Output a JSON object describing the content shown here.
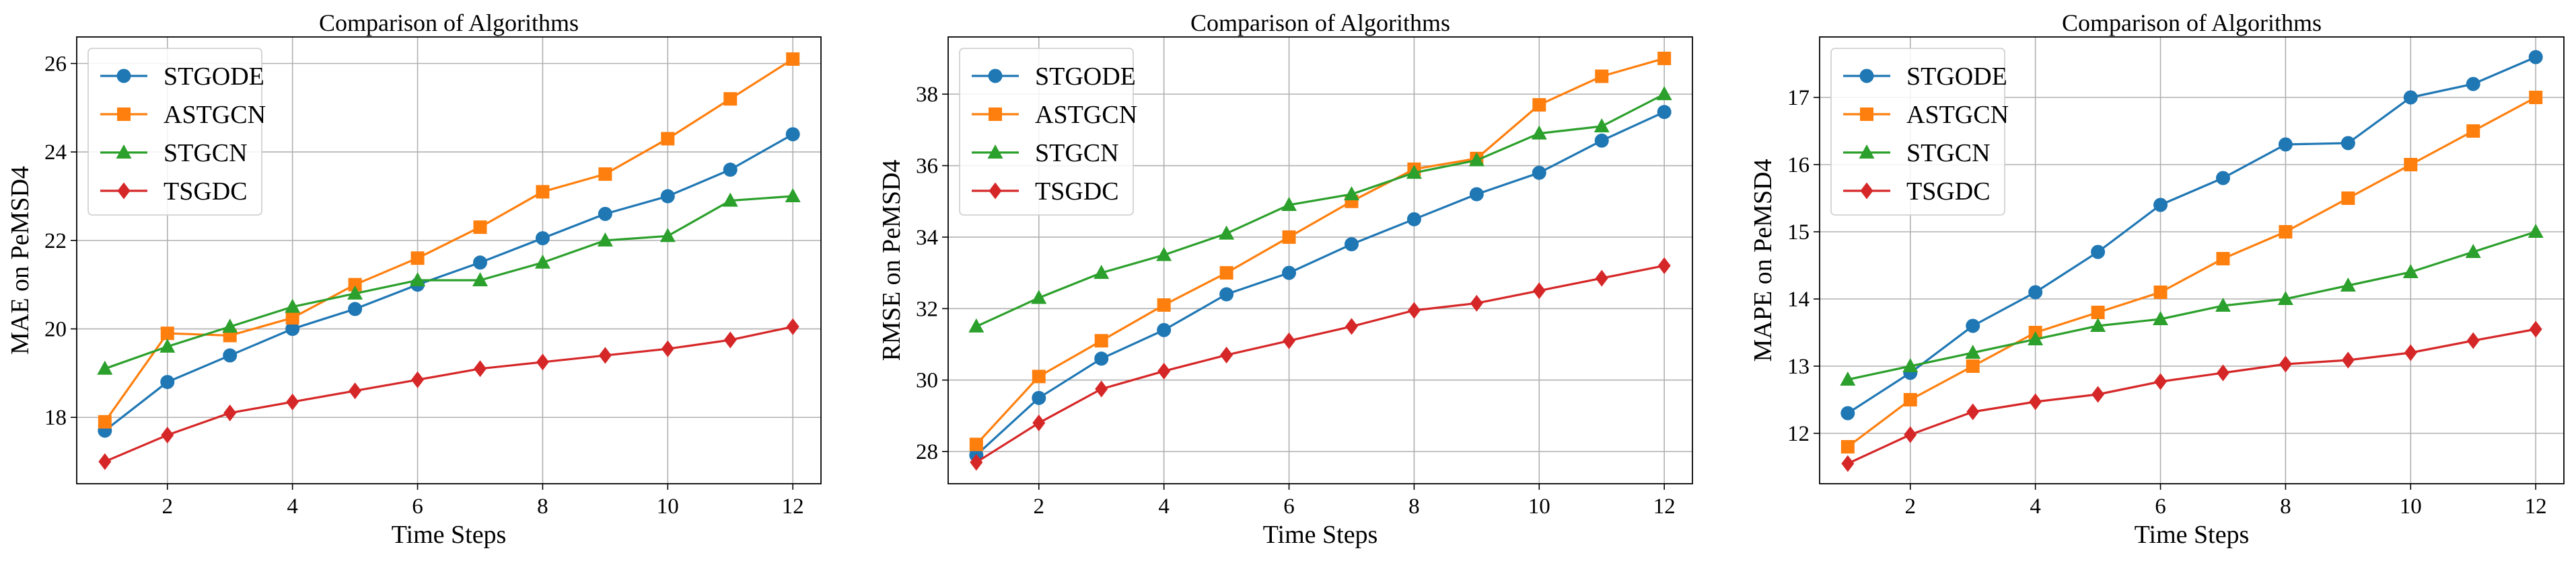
{
  "colors": {
    "STGODE": "#1f77b4",
    "ASTGCN": "#ff7f0e",
    "STGCN": "#2ca02c",
    "TSGDC": "#d62728",
    "grid": "#b0b0b0",
    "legend_border": "#cccccc"
  },
  "markers": {
    "STGODE": "circle",
    "ASTGCN": "square",
    "STGCN": "triangle",
    "TSGDC": "diamond"
  },
  "chart_data": [
    {
      "type": "line",
      "title": "Comparison of Algorithms",
      "xlabel": "Time Steps",
      "ylabel": "MAE on PeMSD4",
      "legend_position": "top-left",
      "grid": true,
      "x": [
        1,
        2,
        3,
        4,
        5,
        6,
        7,
        8,
        9,
        10,
        11,
        12
      ],
      "xlim": [
        0.55,
        12.45
      ],
      "ylim": [
        16.5,
        26.6
      ],
      "xticks": [
        2,
        4,
        6,
        8,
        10,
        12
      ],
      "yticks": [
        18,
        20,
        22,
        24,
        26
      ],
      "series": [
        {
          "name": "STGODE",
          "values": [
            17.7,
            18.8,
            19.4,
            20.0,
            20.45,
            21.0,
            21.5,
            22.05,
            22.6,
            23.0,
            23.6,
            24.4
          ]
        },
        {
          "name": "ASTGCN",
          "values": [
            17.9,
            19.9,
            19.85,
            20.25,
            21.0,
            21.6,
            22.3,
            23.1,
            23.5,
            24.3,
            25.2,
            26.1
          ]
        },
        {
          "name": "STGCN",
          "values": [
            19.1,
            19.6,
            20.05,
            20.5,
            20.8,
            21.1,
            21.1,
            21.5,
            22.0,
            22.1,
            22.9,
            23.0
          ]
        },
        {
          "name": "TSGDC",
          "values": [
            17.0,
            17.6,
            18.1,
            18.35,
            18.6,
            18.85,
            19.1,
            19.25,
            19.4,
            19.55,
            19.75,
            20.05
          ]
        }
      ]
    },
    {
      "type": "line",
      "title": "Comparison of Algorithms",
      "xlabel": "Time Steps",
      "ylabel": "RMSE on PeMSD4",
      "legend_position": "top-left",
      "grid": true,
      "x": [
        1,
        2,
        3,
        4,
        5,
        6,
        7,
        8,
        9,
        10,
        11,
        12
      ],
      "xlim": [
        0.55,
        12.45
      ],
      "ylim": [
        27.1,
        39.6
      ],
      "xticks": [
        2,
        4,
        6,
        8,
        10,
        12
      ],
      "yticks": [
        28,
        30,
        32,
        34,
        36,
        38
      ],
      "series": [
        {
          "name": "STGODE",
          "values": [
            27.9,
            29.5,
            30.6,
            31.4,
            32.4,
            33.0,
            33.8,
            34.5,
            35.2,
            35.8,
            36.7,
            37.5
          ]
        },
        {
          "name": "ASTGCN",
          "values": [
            28.2,
            30.1,
            31.1,
            32.1,
            33.0,
            34.0,
            35.0,
            35.9,
            36.2,
            37.7,
            38.5,
            39.0
          ]
        },
        {
          "name": "STGCN",
          "values": [
            31.5,
            32.3,
            33.0,
            33.5,
            34.1,
            34.9,
            35.2,
            35.8,
            36.15,
            36.9,
            37.1,
            38.0
          ]
        },
        {
          "name": "TSGDC",
          "values": [
            27.7,
            28.8,
            29.75,
            30.25,
            30.7,
            31.1,
            31.5,
            31.95,
            32.15,
            32.5,
            32.85,
            33.2
          ]
        }
      ]
    },
    {
      "type": "line",
      "title": "Comparison of Algorithms",
      "xlabel": "Time Steps",
      "ylabel": "MAPE on PeMSD4",
      "legend_position": "top-left",
      "grid": true,
      "x": [
        1,
        2,
        3,
        4,
        5,
        6,
        7,
        8,
        9,
        10,
        11,
        12
      ],
      "xlim": [
        0.55,
        12.45
      ],
      "ylim": [
        11.25,
        17.9
      ],
      "xticks": [
        2,
        4,
        6,
        8,
        10,
        12
      ],
      "yticks": [
        12,
        13,
        14,
        15,
        16,
        17
      ],
      "series": [
        {
          "name": "STGODE",
          "values": [
            12.3,
            12.9,
            13.6,
            14.1,
            14.7,
            15.4,
            15.8,
            16.3,
            16.32,
            17.0,
            17.2,
            17.6
          ]
        },
        {
          "name": "ASTGCN",
          "values": [
            11.8,
            12.5,
            13.0,
            13.5,
            13.8,
            14.1,
            14.6,
            15.0,
            15.5,
            16.0,
            16.5,
            17.0
          ]
        },
        {
          "name": "STGCN",
          "values": [
            12.8,
            13.0,
            13.2,
            13.4,
            13.6,
            13.7,
            13.9,
            14.0,
            14.2,
            14.4,
            14.7,
            15.0
          ]
        },
        {
          "name": "TSGDC",
          "values": [
            11.55,
            11.98,
            12.32,
            12.47,
            12.58,
            12.77,
            12.9,
            13.03,
            13.09,
            13.2,
            13.38,
            13.55
          ]
        }
      ]
    }
  ]
}
